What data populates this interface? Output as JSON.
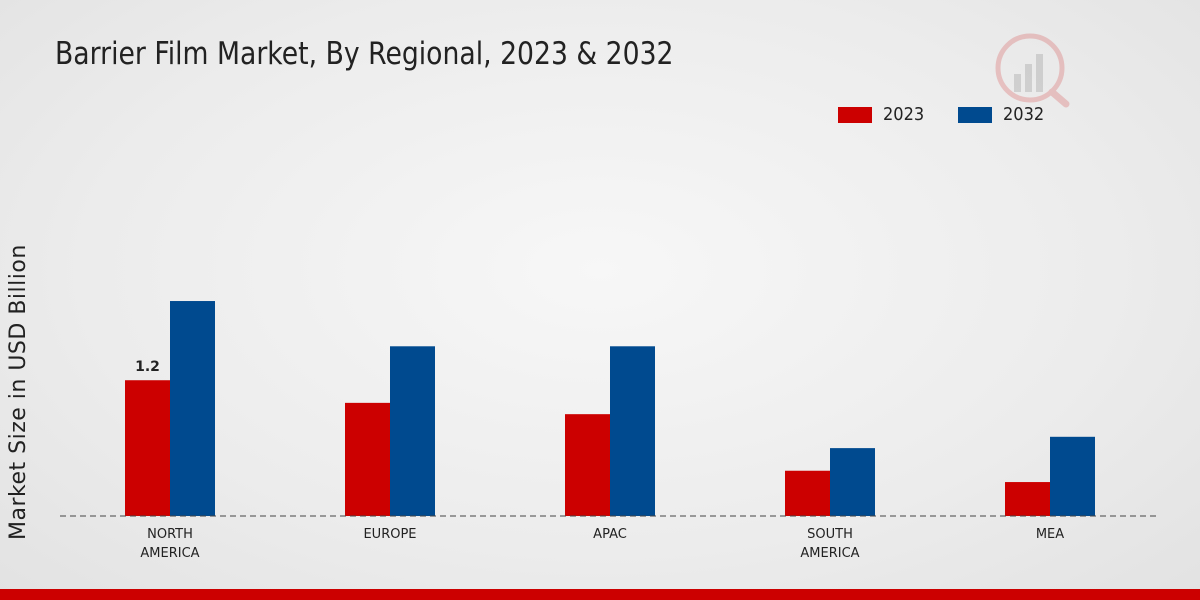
{
  "chart_data": {
    "type": "bar",
    "title": "Barrier Film Market, By Regional, 2023 & 2032",
    "xlabel": "",
    "ylabel": "Market Size in USD Billion",
    "categories": [
      [
        "NORTH",
        "AMERICA"
      ],
      [
        "EUROPE"
      ],
      [
        "APAC"
      ],
      [
        "SOUTH",
        "AMERICA"
      ],
      [
        "MEA"
      ]
    ],
    "series": [
      {
        "name": "2023",
        "color": "#cc0000",
        "values": [
          1.2,
          1.0,
          0.9,
          0.4,
          0.3
        ]
      },
      {
        "name": "2032",
        "color": "#004a8f",
        "values": [
          1.9,
          1.5,
          1.5,
          0.6,
          0.7
        ]
      }
    ],
    "data_labels": [
      {
        "series": 0,
        "index": 0,
        "text": "1.2"
      }
    ],
    "ylim": [
      0,
      3.5
    ],
    "grid": false,
    "legend": "top-right"
  }
}
